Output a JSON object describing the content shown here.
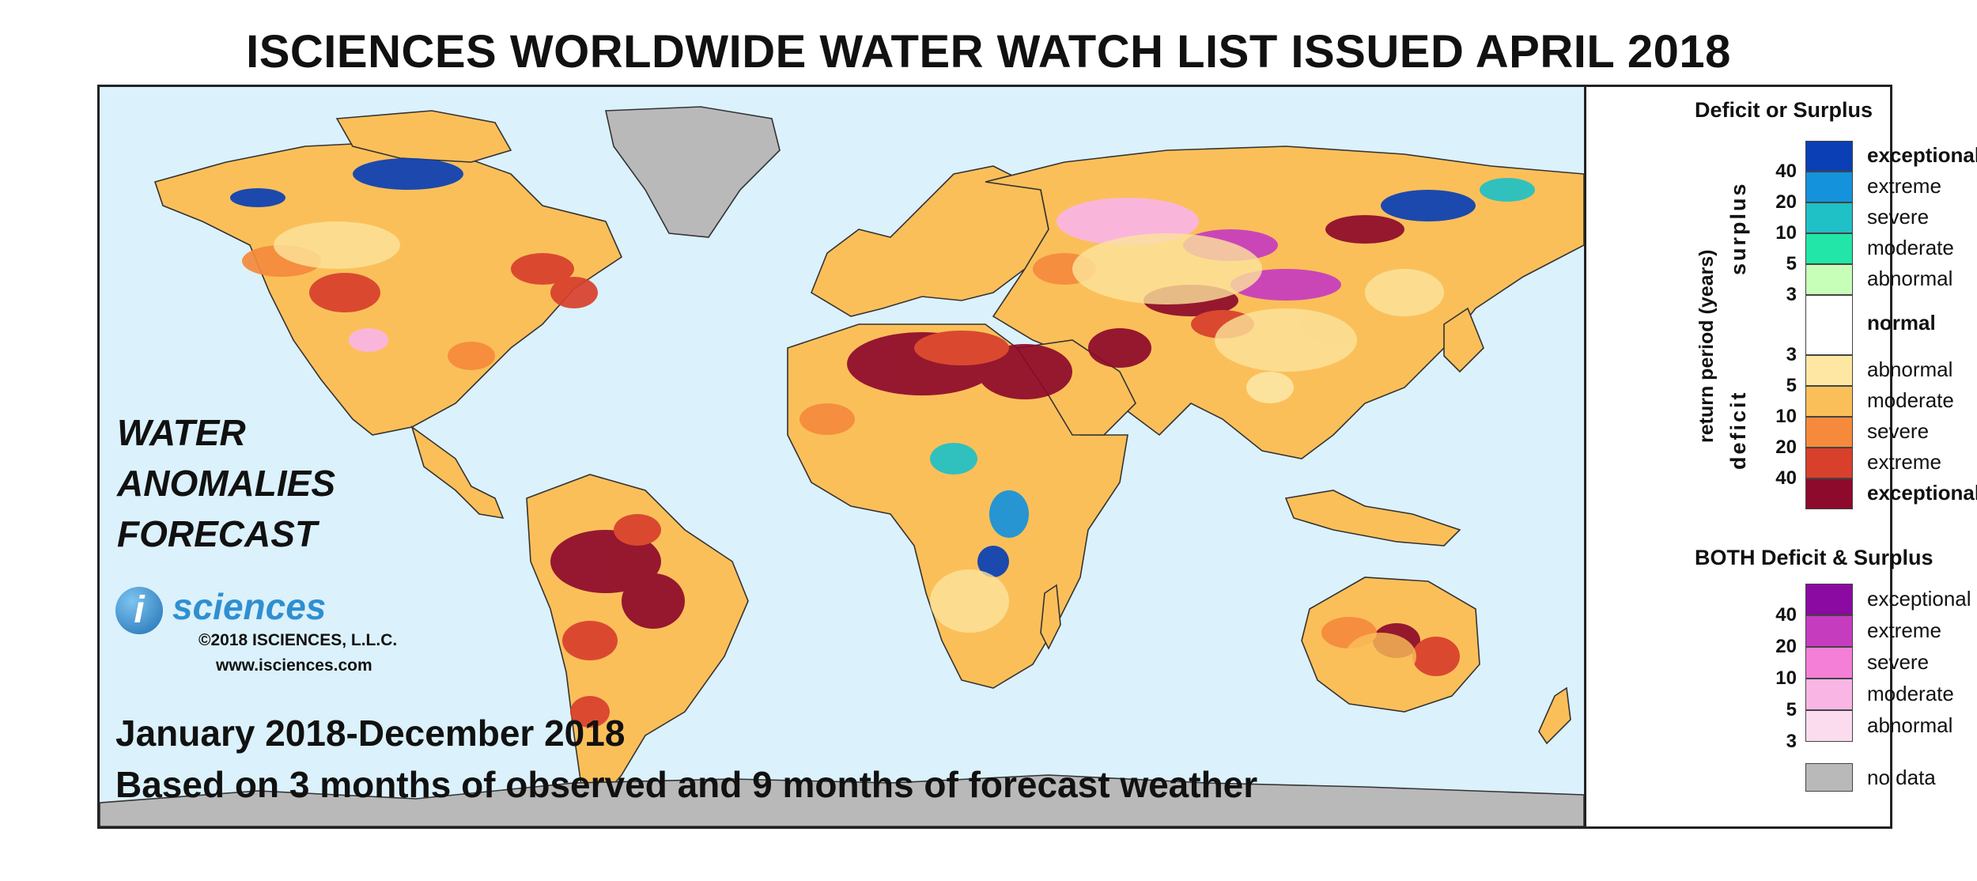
{
  "title": "ISCIENCES WORLDWIDE WATER WATCH LIST ISSUED APRIL 2018",
  "map_text": {
    "line1": "WATER",
    "line2": "ANOMALIES",
    "line3": "FORECAST",
    "period": "January 2018-December 2018",
    "basis": "Based on 3 months of observed and 9 months of forecast weather"
  },
  "logo": {
    "letter": "i",
    "word": "sciences",
    "copyright": "©2018 ISCIENCES, L.L.C.",
    "website": "www.isciences.com"
  },
  "legend": {
    "heading1": "Deficit or Surplus",
    "axis_label": "return period (years)",
    "surplus_label": "surplus",
    "deficit_label": "deficit",
    "surplus": [
      {
        "label": "exceptional",
        "color": "#0a3fb5",
        "bold": true
      },
      {
        "label": "extreme",
        "color": "#1492dc",
        "bold": false
      },
      {
        "label": "severe",
        "color": "#1fc1c6",
        "bold": false
      },
      {
        "label": "moderate",
        "color": "#22e6a7",
        "bold": false
      },
      {
        "label": "abnormal",
        "color": "#c8ffb8",
        "bold": false
      }
    ],
    "normal": {
      "label": "normal",
      "color": "#ffffff"
    },
    "deficit": [
      {
        "label": "abnormal",
        "color": "#fde7a3"
      },
      {
        "label": "moderate",
        "color": "#fbbf5a"
      },
      {
        "label": "severe",
        "color": "#f58a3c"
      },
      {
        "label": "extreme",
        "color": "#d8402c"
      },
      {
        "label": "exceptional",
        "color": "#8d0a2c"
      }
    ],
    "surplus_ticks": [
      "40",
      "20",
      "10",
      "5",
      "3"
    ],
    "deficit_ticks": [
      "3",
      "5",
      "10",
      "20",
      "40"
    ],
    "heading2": "BOTH Deficit & Surplus",
    "both": [
      {
        "label": "exceptional",
        "color": "#8a0aa2"
      },
      {
        "label": "extreme",
        "color": "#c63cbf"
      },
      {
        "label": "severe",
        "color": "#f37fd6"
      },
      {
        "label": "moderate",
        "color": "#f9b6e5"
      },
      {
        "label": "abnormal",
        "color": "#fbdcef"
      }
    ],
    "both_ticks": [
      "40",
      "20",
      "10",
      "5",
      "3"
    ],
    "nodata": {
      "label": "no data",
      "color": "#b9b9b9"
    }
  },
  "map_colors": {
    "ocean": "#dbf1fb",
    "nodata": "#b9b9b9"
  }
}
